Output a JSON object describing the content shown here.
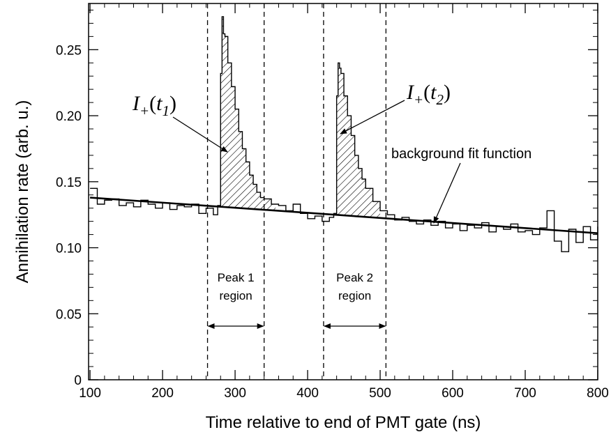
{
  "chart_data": {
    "type": "line",
    "title": "",
    "xlabel": "Time relative to end of PMT gate (ns)",
    "ylabel": "Annihilation rate (arb. u.)",
    "xlim": [
      98,
      800
    ],
    "ylim": [
      0,
      0.285
    ],
    "x_ticks": [
      100,
      200,
      300,
      400,
      500,
      600,
      700,
      800
    ],
    "y_ticks": [
      0,
      0.05,
      0.1,
      0.15,
      0.2,
      0.25
    ],
    "x_tick_labels": [
      "100",
      "200",
      "300",
      "400",
      "500",
      "600",
      "700",
      "800"
    ],
    "y_tick_labels": [
      "0",
      "0.05",
      "0.10",
      "0.15",
      "0.20",
      "0.25"
    ],
    "grid": false,
    "series": [
      {
        "style": "step",
        "x": [
          100,
          110,
          120,
          130,
          140,
          150,
          160,
          170,
          180,
          190,
          200,
          210,
          220,
          230,
          240,
          250,
          260,
          270,
          276,
          280,
          282,
          284,
          286,
          290,
          295,
          300,
          305,
          310,
          315,
          320,
          325,
          330,
          335,
          340,
          350,
          360,
          370,
          380,
          390,
          400,
          410,
          420,
          430,
          436,
          440,
          442,
          444,
          446,
          450,
          455,
          460,
          465,
          470,
          475,
          480,
          490,
          500,
          510,
          520,
          530,
          540,
          550,
          560,
          570,
          580,
          590,
          600,
          610,
          620,
          630,
          640,
          650,
          660,
          670,
          680,
          690,
          700,
          710,
          720,
          730,
          740,
          750,
          760,
          770,
          780,
          790,
          800
        ],
        "y": [
          0.145,
          0.133,
          0.136,
          0.137,
          0.132,
          0.134,
          0.131,
          0.136,
          0.133,
          0.13,
          0.134,
          0.129,
          0.132,
          0.131,
          0.133,
          0.126,
          0.13,
          0.125,
          0.132,
          0.232,
          0.275,
          0.262,
          0.26,
          0.24,
          0.222,
          0.205,
          0.188,
          0.175,
          0.165,
          0.155,
          0.148,
          0.142,
          0.138,
          0.137,
          0.133,
          0.132,
          0.128,
          0.133,
          0.126,
          0.122,
          0.124,
          0.12,
          0.123,
          0.126,
          0.215,
          0.24,
          0.236,
          0.232,
          0.215,
          0.2,
          0.185,
          0.17,
          0.16,
          0.152,
          0.145,
          0.135,
          0.128,
          0.125,
          0.121,
          0.123,
          0.12,
          0.118,
          0.121,
          0.117,
          0.12,
          0.115,
          0.118,
          0.113,
          0.117,
          0.115,
          0.119,
          0.112,
          0.116,
          0.114,
          0.118,
          0.112,
          0.113,
          0.11,
          0.115,
          0.128,
          0.105,
          0.097,
          0.114,
          0.104,
          0.116,
          0.106,
          0.116
        ]
      },
      {
        "name": "background fit function",
        "style": "line",
        "x": [
          100,
          800
        ],
        "y": [
          0.138,
          0.111
        ]
      }
    ],
    "vlines": [
      262,
      340,
      422,
      508
    ],
    "regions": [
      {
        "label": "Peak 1",
        "label2": "region",
        "from": 262,
        "to": 340
      },
      {
        "label": "Peak 2",
        "label2": "region",
        "from": 422,
        "to": 508
      }
    ],
    "annotations": {
      "peak1": {
        "sym": "I",
        "sign": "+",
        "arg": "t",
        "sub": "1"
      },
      "peak2": {
        "sym": "I",
        "sign": "+",
        "arg": "t",
        "sub": "2"
      },
      "fit": "background fit function"
    }
  }
}
